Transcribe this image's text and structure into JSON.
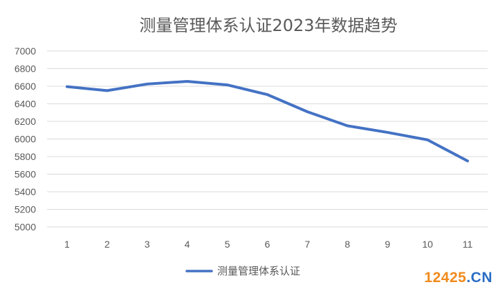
{
  "chart_data": {
    "type": "line",
    "title": "测量管理体系认证2023年数据趋势",
    "xlabel": "",
    "ylabel": "",
    "x": [
      1,
      2,
      3,
      4,
      5,
      6,
      7,
      8,
      9,
      10,
      11
    ],
    "y_ticks": [
      5000,
      5200,
      5400,
      5600,
      5800,
      6000,
      6200,
      6400,
      6600,
      6800,
      7000
    ],
    "ylim": [
      5000,
      7000
    ],
    "grid": true,
    "legend_position": "bottom",
    "series": [
      {
        "name": "测量管理体系认证",
        "color": "#4472c4",
        "values": [
          6595,
          6550,
          6625,
          6655,
          6615,
          6505,
          6310,
          6150,
          6075,
          5990,
          5750
        ]
      }
    ]
  },
  "watermark": {
    "number": "12425",
    "dot": ".",
    "domain": "CN"
  }
}
